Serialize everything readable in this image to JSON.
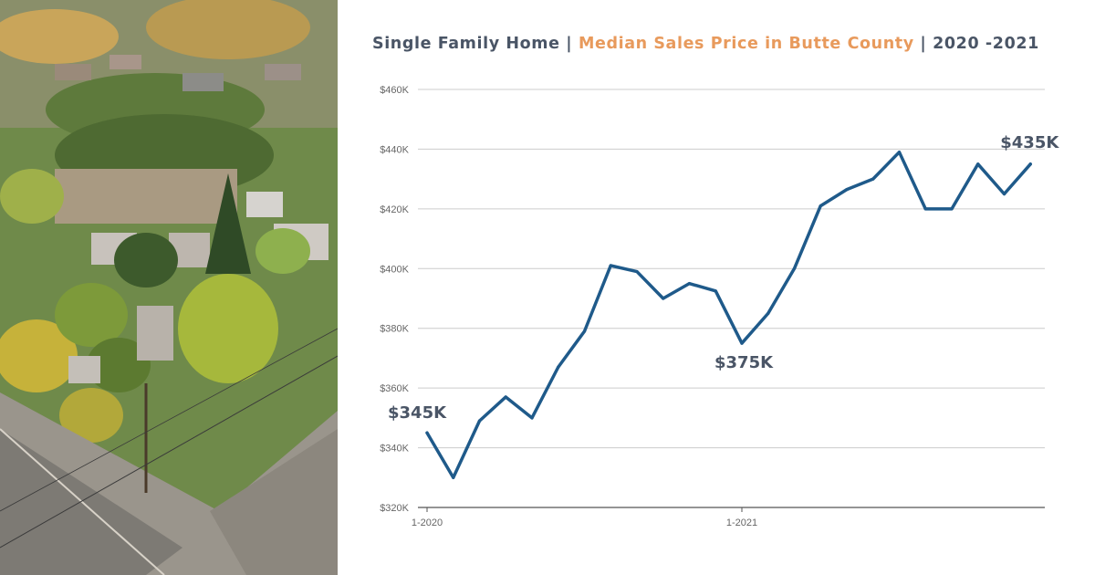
{
  "title": {
    "part1": "Single Family Home",
    "sep1": " | ",
    "part2": "Median Sales Price in Butte County",
    "sep2": " | ",
    "part3": "2020 -2021"
  },
  "colors": {
    "line": "#1f5a8a",
    "accent": "#e89a5c",
    "title": "#4a5566",
    "grid": "#cccccc"
  },
  "chart_data": {
    "type": "line",
    "title": "Single Family Home | Median Sales Price in Butte County | 2020 -2021",
    "xlabel": "",
    "ylabel": "",
    "x_tick_labels": [
      {
        "index": 0,
        "label": "1-2020"
      },
      {
        "index": 12,
        "label": "1-2021"
      }
    ],
    "ylim": [
      320,
      460
    ],
    "y_ticks": [
      320,
      340,
      360,
      380,
      400,
      420,
      440,
      460
    ],
    "y_tick_labels": [
      "$320K",
      "$340K",
      "$360K",
      "$380K",
      "$400K",
      "$420K",
      "$440K",
      "$460K"
    ],
    "grid": true,
    "legend": "none",
    "series": [
      {
        "values": [
          345,
          330,
          349,
          357,
          350,
          367,
          379,
          401,
          399,
          390,
          395,
          392.5,
          375,
          385,
          400,
          421,
          426.5,
          430,
          439,
          420,
          420,
          435,
          425,
          435
        ]
      }
    ],
    "annotations": [
      {
        "index": 0,
        "value": 345,
        "text": "$345K"
      },
      {
        "index": 12,
        "value": 375,
        "text": "$375K"
      },
      {
        "index": 23,
        "value": 435,
        "text": "$435K"
      }
    ]
  }
}
